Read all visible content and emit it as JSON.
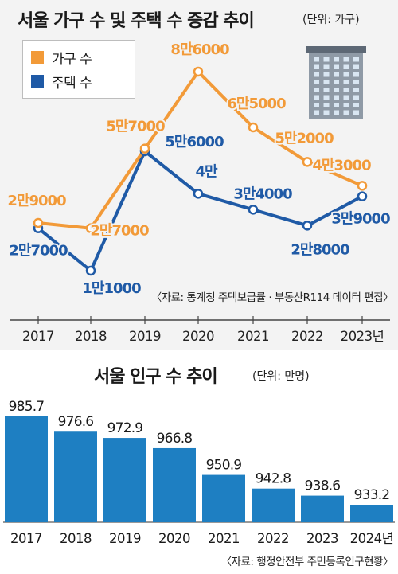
{
  "top": {
    "title": "서울 가구 수 및 주택 수 증감 추이",
    "unit": "(단위: 가구)",
    "source": "〈자료: 통계청 주택보급률 · 부동산R114 데이터 편집〉"
  },
  "bottom": {
    "title": "서울 인구 수 추이",
    "unit": "(단위: 만명)",
    "source": "〈자료: 행정안전부 주민등록인구현황〉"
  },
  "chart_data": [
    {
      "type": "line",
      "title": "서울 가구 수 및 주택 수 증감 추이",
      "unit": "(단위: 가구)",
      "categories": [
        "2017",
        "2018",
        "2019",
        "2020",
        "2021",
        "2022",
        "2023년"
      ],
      "series": [
        {
          "name": "가구 수",
          "color": "#f29a38",
          "values": [
            29000,
            27000,
            57000,
            86000,
            65000,
            52000,
            43000
          ],
          "labels": [
            "2만9000",
            "2만7000",
            "5만7000",
            "8만6000",
            "6만5000",
            "5만2000",
            "4만3000"
          ]
        },
        {
          "name": "주택 수",
          "color": "#1f5aa6",
          "values": [
            27000,
            11000,
            56000,
            40000,
            34000,
            28000,
            39000
          ],
          "labels": [
            "2만7000",
            "1만1000",
            "5만6000",
            "4만",
            "3만4000",
            "2만8000",
            "3만9000"
          ]
        }
      ],
      "legend": "top-left",
      "grid": false
    },
    {
      "type": "bar",
      "title": "서울 인구 수 추이",
      "unit": "(단위: 만명)",
      "categories": [
        "2017",
        "2018",
        "2019",
        "2020",
        "2021",
        "2022",
        "2023",
        "2024년"
      ],
      "values": [
        985.7,
        976.6,
        972.9,
        966.8,
        950.9,
        942.8,
        938.6,
        933.2
      ],
      "color": "#1e7fc2",
      "grid": false
    }
  ]
}
